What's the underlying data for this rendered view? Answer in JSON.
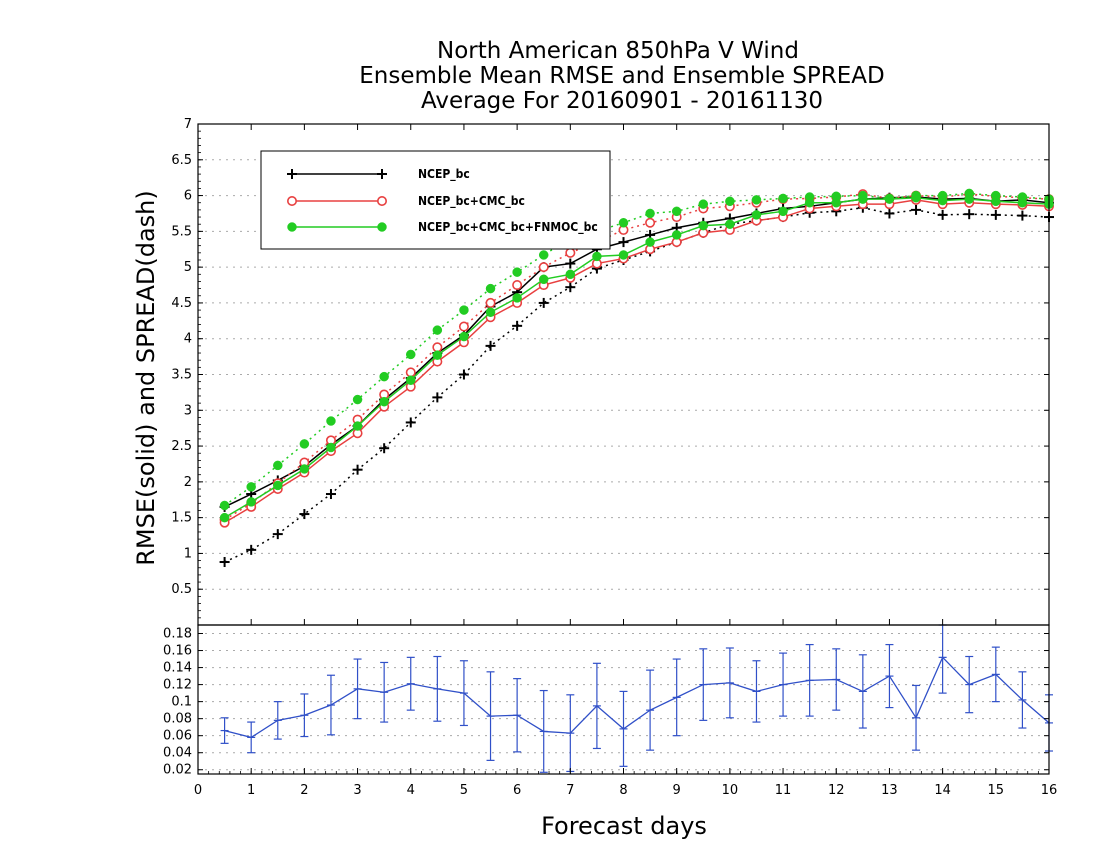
{
  "chart_data": [
    {
      "type": "line",
      "title_lines": [
        "North American 850hPa V Wind",
        "Ensemble Mean RMSE and Ensemble SPREAD",
        "Average For 20160901 - 20161130"
      ],
      "xlabel": "Forecast days",
      "ylabel": "RMSE(solid)  and  SPREAD(dash)",
      "xlim": [
        0,
        16
      ],
      "ylim": [
        0,
        7
      ],
      "x_ticks": [
        "0",
        "1",
        "2",
        "3",
        "4",
        "5",
        "6",
        "7",
        "8",
        "9",
        "10",
        "11",
        "12",
        "13",
        "14",
        "15",
        "16"
      ],
      "y_ticks": [
        "0.5",
        "1",
        "1.5",
        "2",
        "2.5",
        "3",
        "3.5",
        "4",
        "4.5",
        "5",
        "5.5",
        "6",
        "6.5",
        "7"
      ],
      "grid": true,
      "legend_position": "top-left",
      "x": [
        0.5,
        1,
        1.5,
        2,
        2.5,
        3,
        3.5,
        4,
        4.5,
        5,
        5.5,
        6,
        6.5,
        7,
        7.5,
        8,
        8.5,
        9,
        9.5,
        10,
        10.5,
        11,
        11.5,
        12,
        12.5,
        13,
        13.5,
        14,
        14.5,
        15,
        15.5,
        16
      ],
      "series": [
        {
          "name": "NCEP_bc",
          "color": "#000000",
          "marker": "plus",
          "rmse": [
            1.65,
            1.83,
            2.02,
            2.22,
            2.52,
            2.78,
            3.15,
            3.45,
            3.8,
            4.05,
            4.45,
            4.65,
            5.0,
            5.05,
            5.25,
            5.35,
            5.45,
            5.55,
            5.62,
            5.68,
            5.75,
            5.82,
            5.85,
            5.9,
            5.95,
            5.97,
            5.98,
            5.95,
            5.96,
            5.92,
            5.94,
            5.9
          ],
          "spread": [
            0.88,
            1.05,
            1.27,
            1.55,
            1.83,
            2.17,
            2.47,
            2.83,
            3.18,
            3.5,
            3.9,
            4.18,
            4.5,
            4.72,
            4.98,
            5.1,
            5.22,
            5.35,
            5.48,
            5.6,
            5.65,
            5.7,
            5.76,
            5.78,
            5.83,
            5.75,
            5.8,
            5.73,
            5.74,
            5.73,
            5.72,
            5.7
          ]
        },
        {
          "name": "NCEP_bc+CMC_bc",
          "color": "#e84040",
          "marker": "open-circle",
          "rmse": [
            1.43,
            1.65,
            1.9,
            2.13,
            2.43,
            2.68,
            3.05,
            3.33,
            3.68,
            3.95,
            4.3,
            4.5,
            4.75,
            4.85,
            5.05,
            5.12,
            5.25,
            5.35,
            5.48,
            5.52,
            5.65,
            5.7,
            5.82,
            5.85,
            5.88,
            5.88,
            5.94,
            5.88,
            5.9,
            5.88,
            5.87,
            5.85
          ],
          "spread": [
            1.47,
            1.7,
            1.98,
            2.27,
            2.58,
            2.87,
            3.22,
            3.53,
            3.88,
            4.17,
            4.5,
            4.75,
            5.0,
            5.2,
            5.35,
            5.52,
            5.62,
            5.7,
            5.82,
            5.85,
            5.9,
            5.95,
            5.96,
            5.98,
            6.02,
            5.96,
            6.0,
            5.98,
            6.02,
            5.99,
            5.97,
            5.95
          ]
        },
        {
          "name": "NCEP_bc+CMC_bc+FNMOC_bc",
          "color": "#22cc22",
          "marker": "filled-circle",
          "rmse": [
            1.5,
            1.72,
            1.95,
            2.18,
            2.48,
            2.78,
            3.12,
            3.42,
            3.77,
            4.03,
            4.37,
            4.57,
            4.83,
            4.9,
            5.15,
            5.17,
            5.35,
            5.45,
            5.58,
            5.6,
            5.73,
            5.78,
            5.9,
            5.9,
            5.95,
            5.95,
            5.97,
            5.93,
            5.95,
            5.92,
            5.9,
            5.88
          ],
          "spread": [
            1.67,
            1.93,
            2.23,
            2.53,
            2.85,
            3.15,
            3.47,
            3.78,
            4.12,
            4.4,
            4.7,
            4.93,
            5.17,
            5.4,
            5.5,
            5.62,
            5.75,
            5.78,
            5.88,
            5.92,
            5.94,
            5.96,
            5.98,
            5.99,
            6.0,
            5.96,
            6.0,
            6.0,
            6.03,
            6.0,
            5.98,
            5.95
          ]
        }
      ]
    },
    {
      "type": "line",
      "xlim": [
        0,
        16
      ],
      "ylim": [
        0.015,
        0.19
      ],
      "y_ticks": [
        "0.02",
        "0.04",
        "0.06",
        "0.08",
        "0.1",
        "0.12",
        "0.14",
        "0.16",
        "0.18"
      ],
      "grid": true,
      "series": [
        {
          "color": "#3050c8",
          "marker": "error-bar",
          "x": [
            0.5,
            1,
            1.5,
            2,
            2.5,
            3,
            3.5,
            4,
            4.5,
            5,
            5.5,
            6,
            6.5,
            7,
            7.5,
            8,
            8.5,
            9,
            9.5,
            10,
            10.5,
            11,
            11.5,
            12,
            12.5,
            13,
            13.5,
            14,
            14.5,
            15,
            15.5,
            16
          ],
          "values": [
            0.066,
            0.058,
            0.078,
            0.084,
            0.096,
            0.115,
            0.111,
            0.121,
            0.115,
            0.11,
            0.083,
            0.084,
            0.065,
            0.063,
            0.095,
            0.068,
            0.09,
            0.105,
            0.12,
            0.122,
            0.112,
            0.12,
            0.125,
            0.126,
            0.112,
            0.13,
            0.081,
            0.152,
            0.12,
            0.132,
            0.102,
            0.075
          ],
          "error": [
            0.015,
            0.018,
            0.022,
            0.025,
            0.035,
            0.035,
            0.035,
            0.031,
            0.038,
            0.038,
            0.052,
            0.043,
            0.048,
            0.045,
            0.05,
            0.044,
            0.047,
            0.045,
            0.042,
            0.041,
            0.036,
            0.037,
            0.042,
            0.036,
            0.043,
            0.037,
            0.038,
            0.042,
            0.033,
            0.032,
            0.033,
            0.033
          ]
        }
      ]
    }
  ]
}
